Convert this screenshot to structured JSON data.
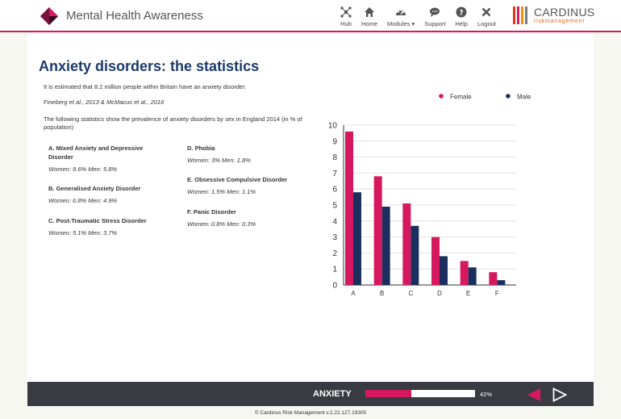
{
  "header": {
    "app_title": "Mental Health Awareness",
    "nav": [
      {
        "label": "Hub",
        "icon": "hub-icon"
      },
      {
        "label": "Home",
        "icon": "home-icon"
      },
      {
        "label": "Modules ▾",
        "icon": "modules-icon"
      },
      {
        "label": "Support",
        "icon": "support-icon"
      },
      {
        "label": "Help",
        "icon": "help-icon"
      },
      {
        "label": "Logout",
        "icon": "logout-icon"
      }
    ],
    "brand": {
      "name": "CARDINUS",
      "tagline": "riskmanagement",
      "bar_colors": [
        "#e63312",
        "#d6195e",
        "#f39200",
        "#7a7a7a"
      ]
    }
  },
  "main": {
    "title": "Anxiety disorders: the statistics",
    "intro": "It is estimated that 8.2 million people within Britain have an anxiety disorder.",
    "citation": "Fineberg et al., 2013 & McMacus et al., 2016",
    "description": "The following statistics show the prevalence of anxiety disorders by sex in England 2014 (in % of population)",
    "stats": [
      {
        "name": "A. Mixed Anxiety and Depressive Disorder",
        "values": "Women: 9.6% Men: 5.8%"
      },
      {
        "name": "B. Generalised Anxiety Disorder",
        "values": "Women: 6.8% Men: 4.9%"
      },
      {
        "name": "C. Post-Traumatic Stress Disorder",
        "values": "Women: 5.1% Men: 3.7%"
      },
      {
        "name": "D. Phobia",
        "values": "Women: 3% Men: 1.8%"
      },
      {
        "name": "E. Obsessive Compulsive Disorder",
        "values": "Women: 1.5% Men: 1.1%"
      },
      {
        "name": "F. Panic Disorder",
        "values": "Women: 0.8% Men: 0.3%"
      }
    ]
  },
  "chart_data": {
    "type": "bar",
    "categories": [
      "A",
      "B",
      "C",
      "D",
      "E",
      "F"
    ],
    "series": [
      {
        "name": "Female",
        "color": "#d6195e",
        "values": [
          9.6,
          6.8,
          5.1,
          3.0,
          1.5,
          0.8
        ]
      },
      {
        "name": "Male",
        "color": "#1b2f5e",
        "values": [
          5.8,
          4.9,
          3.7,
          1.8,
          1.1,
          0.3
        ]
      }
    ],
    "ylim": [
      0,
      10
    ],
    "yticks": [
      0,
      1,
      2,
      3,
      4,
      5,
      6,
      7,
      8,
      9,
      10
    ],
    "grid": true,
    "legend_position": "top"
  },
  "footer": {
    "section": "ANXIETY",
    "progress": 0.42,
    "progress_label": "42%",
    "accent": "#d6195e"
  },
  "copyright": "© Cardinus Risk Management v.2.22.127.19305"
}
